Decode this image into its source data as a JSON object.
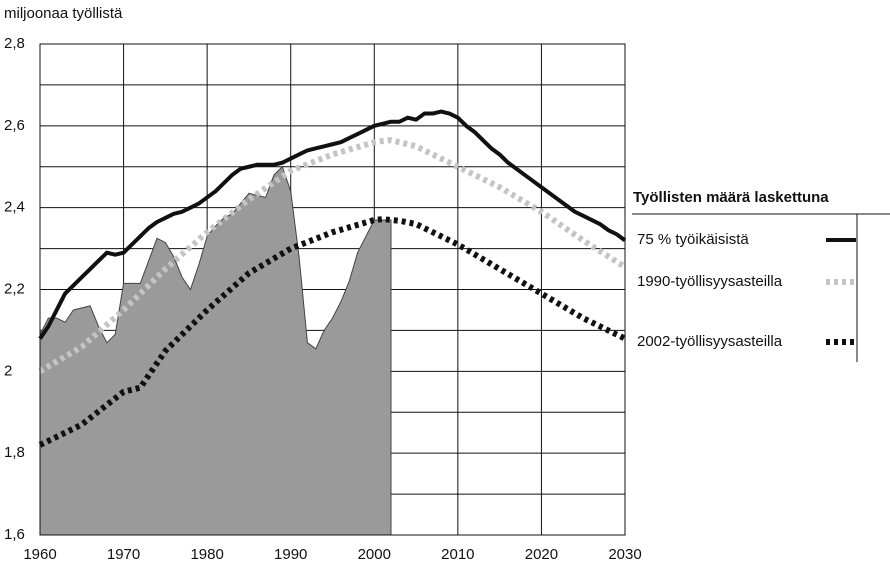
{
  "chart_data": {
    "type": "line",
    "ylabel": "miljoonaa työllistä",
    "legend_title": "Työllisten määrä laskettuna",
    "legend": "right",
    "grid": true,
    "xlim": [
      1960,
      2030
    ],
    "xticks": [
      1960,
      1970,
      1980,
      1990,
      2000,
      2010,
      2020,
      2030
    ],
    "ylim": [
      1.6,
      2.8
    ],
    "yticks": [
      {
        "value": 1.6,
        "label": "1,6"
      },
      {
        "value": 1.8,
        "label": "1,8"
      },
      2,
      {
        "value": 2.2,
        "label": "2,2"
      },
      {
        "value": 2.4,
        "label": "2,4"
      },
      {
        "value": 2.6,
        "label": "2,6"
      },
      {
        "value": 2.8,
        "label": "2,8"
      }
    ],
    "ygrid": [
      1.7,
      1.9,
      2.1,
      2.3,
      2.5,
      2.7
    ],
    "x": [
      1960,
      1961,
      1962,
      1963,
      1964,
      1965,
      1966,
      1967,
      1968,
      1969,
      1970,
      1971,
      1972,
      1973,
      1974,
      1975,
      1976,
      1977,
      1978,
      1979,
      1980,
      1981,
      1982,
      1983,
      1984,
      1985,
      1986,
      1987,
      1988,
      1989,
      1990,
      1991,
      1992,
      1993,
      1994,
      1995,
      1996,
      1997,
      1998,
      1999,
      2000,
      2001,
      2002,
      2003,
      2004,
      2005,
      2006,
      2007,
      2008,
      2009,
      2010,
      2011,
      2012,
      2013,
      2014,
      2015,
      2016,
      2017,
      2018,
      2019,
      2020,
      2021,
      2022,
      2023,
      2024,
      2025,
      2026,
      2027,
      2028,
      2029,
      2030
    ],
    "series": [
      {
        "kind": "area",
        "color": "#9a9a9a",
        "values": [
          2.09,
          2.13,
          2.13,
          2.12,
          2.15,
          2.155,
          2.16,
          2.11,
          2.07,
          2.09,
          2.215,
          2.215,
          2.215,
          2.27,
          2.325,
          2.315,
          2.28,
          2.23,
          2.2,
          2.26,
          2.33,
          2.355,
          2.375,
          2.385,
          2.41,
          2.435,
          2.43,
          2.425,
          2.48,
          2.5,
          2.44,
          2.28,
          2.07,
          2.055,
          2.1,
          2.13,
          2.17,
          2.22,
          2.29,
          2.33,
          2.37,
          2.37,
          2.37,
          null,
          null,
          null,
          null,
          null,
          null,
          null,
          null,
          null,
          null,
          null,
          null,
          null,
          null,
          null,
          null,
          null,
          null,
          null,
          null,
          null,
          null,
          null,
          null,
          null,
          null,
          null,
          null
        ]
      },
      {
        "name": "75 % työikäisistä",
        "kind": "solid",
        "color": "#111111",
        "values": [
          2.08,
          2.11,
          2.15,
          2.19,
          2.21,
          2.23,
          2.25,
          2.27,
          2.29,
          2.285,
          2.29,
          2.31,
          2.33,
          2.35,
          2.365,
          2.375,
          2.385,
          2.39,
          2.4,
          2.41,
          2.425,
          2.44,
          2.46,
          2.48,
          2.495,
          2.5,
          2.505,
          2.505,
          2.505,
          2.51,
          2.52,
          2.53,
          2.54,
          2.545,
          2.55,
          2.555,
          2.56,
          2.57,
          2.58,
          2.59,
          2.6,
          2.605,
          2.61,
          2.61,
          2.62,
          2.615,
          2.63,
          2.63,
          2.635,
          2.63,
          2.62,
          2.6,
          2.585,
          2.565,
          2.545,
          2.53,
          2.51,
          2.495,
          2.48,
          2.465,
          2.45,
          2.435,
          2.42,
          2.405,
          2.39,
          2.38,
          2.37,
          2.36,
          2.345,
          2.335,
          2.32
        ]
      },
      {
        "name": "1990-työllisyysasteilla",
        "kind": "dotted",
        "color": "#c4c4c4",
        "values": [
          2.0,
          2.012,
          2.024,
          2.036,
          2.048,
          2.06,
          2.078,
          2.096,
          2.114,
          2.132,
          2.15,
          2.17,
          2.19,
          2.21,
          2.23,
          2.25,
          2.268,
          2.286,
          2.304,
          2.322,
          2.34,
          2.356,
          2.372,
          2.388,
          2.404,
          2.42,
          2.434,
          2.448,
          2.462,
          2.476,
          2.49,
          2.498,
          2.506,
          2.514,
          2.522,
          2.53,
          2.536,
          2.542,
          2.548,
          2.554,
          2.56,
          2.563,
          2.565,
          2.56,
          2.555,
          2.55,
          2.54,
          2.53,
          2.52,
          2.51,
          2.5,
          2.49,
          2.48,
          2.47,
          2.46,
          2.45,
          2.438,
          2.426,
          2.414,
          2.402,
          2.39,
          2.376,
          2.362,
          2.348,
          2.334,
          2.32,
          2.307,
          2.294,
          2.281,
          2.268,
          2.255
        ]
      },
      {
        "name": "2002-työllisyysasteilla",
        "kind": "dotted",
        "color": "#111111",
        "values": [
          1.82,
          1.83,
          1.84,
          1.85,
          1.86,
          1.87,
          1.886,
          1.902,
          1.918,
          1.934,
          1.95,
          1.955,
          1.96,
          1.99,
          2.02,
          2.05,
          2.07,
          2.09,
          2.11,
          2.13,
          2.15,
          2.168,
          2.186,
          2.204,
          2.222,
          2.24,
          2.252,
          2.264,
          2.276,
          2.288,
          2.3,
          2.308,
          2.316,
          2.324,
          2.332,
          2.34,
          2.346,
          2.352,
          2.358,
          2.364,
          2.37,
          2.372,
          2.37,
          2.368,
          2.364,
          2.36,
          2.35,
          2.34,
          2.33,
          2.32,
          2.31,
          2.298,
          2.286,
          2.274,
          2.262,
          2.25,
          2.238,
          2.226,
          2.214,
          2.202,
          2.19,
          2.178,
          2.166,
          2.154,
          2.142,
          2.13,
          2.12,
          2.11,
          2.1,
          2.09,
          2.08
        ]
      }
    ]
  }
}
